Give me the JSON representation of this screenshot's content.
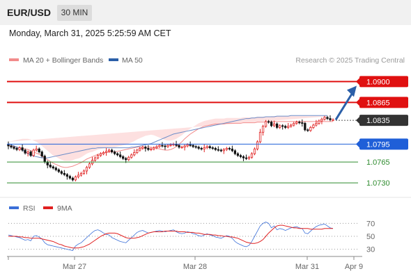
{
  "header": {
    "symbol": "EUR/USD",
    "timeframe": "30 MIN",
    "datetime": "Monday, March 31, 2025 5:25:59 AM CET"
  },
  "legend": {
    "ma20": "MA 20 + Bollinger Bands",
    "ma50": "MA 50",
    "copyright": "Research © 2025 Trading Central"
  },
  "rsi": {
    "legend_rsi": "RSI",
    "legend_ma": "9MA"
  },
  "colors": {
    "resistance": "#e01010",
    "pivot": "#1f5fd8",
    "support": "#2e8b2e",
    "current": "#333333",
    "candle_up": "#e02020",
    "candle_down": "#111111",
    "band_fill": "#fde0e0",
    "ma20": "#f28b8b",
    "ma50": "#6b8cc8",
    "rsi_line": "#3a6fd8",
    "rsi_ma": "#e02020",
    "arrow": "#2b5fa8"
  },
  "chart_data": [
    {
      "type": "candlestick",
      "title": "EUR/USD",
      "ylim": [
        1.0715,
        1.0925
      ],
      "x_ticks": [
        "Mar 27",
        "Mar 28",
        "Mar 31",
        "Apr 9"
      ],
      "levels": [
        {
          "value": 1.09,
          "label": "1.0900",
          "kind": "resistance"
        },
        {
          "value": 1.0865,
          "label": "1.0865",
          "kind": "resistance"
        },
        {
          "value": 1.0835,
          "label": "1.0835",
          "kind": "current"
        },
        {
          "value": 1.0795,
          "label": "1.0795",
          "kind": "pivot"
        },
        {
          "value": 1.0765,
          "label": "1.0765",
          "kind": "support"
        },
        {
          "value": 1.073,
          "label": "1.0730",
          "kind": "support"
        }
      ],
      "forecast_target": 1.09,
      "close_series": [
        1.0792,
        1.079,
        1.0788,
        1.0786,
        1.0789,
        1.0785,
        1.078,
        1.0782,
        1.0776,
        1.0785,
        1.0787,
        1.0782,
        1.0775,
        1.0765,
        1.076,
        1.0757,
        1.0755,
        1.0752,
        1.0749,
        1.0746,
        1.0744,
        1.0741,
        1.0738,
        1.0735,
        1.074,
        1.0743,
        1.0746,
        1.075,
        1.0756,
        1.0762,
        1.0768,
        1.0772,
        1.0776,
        1.0779,
        1.0781,
        1.0783,
        1.0785,
        1.0782,
        1.0779,
        1.0777,
        1.0774,
        1.0771,
        1.0769,
        1.0773,
        1.0777,
        1.0781,
        1.0785,
        1.0788,
        1.079,
        1.0788,
        1.0786,
        1.0787,
        1.0789,
        1.0791,
        1.0793,
        1.0792,
        1.0791,
        1.0793,
        1.0794,
        1.0795,
        1.0793,
        1.079,
        1.079,
        1.0792,
        1.0794,
        1.0793,
        1.0791,
        1.079,
        1.0788,
        1.0787,
        1.0789,
        1.0791,
        1.0789,
        1.0788,
        1.0786,
        1.0785,
        1.0784,
        1.0786,
        1.0788,
        1.0787,
        1.0784,
        1.0779,
        1.0776,
        1.0774,
        1.0772,
        1.0771,
        1.0773,
        1.0779,
        1.0787,
        1.0799,
        1.0815,
        1.0825,
        1.0833,
        1.0832,
        1.0826,
        1.0829,
        1.0823,
        1.0826,
        1.0825,
        1.0823,
        1.0825,
        1.0827,
        1.083,
        1.0832,
        1.0831,
        1.083,
        1.0819,
        1.0818,
        1.0823,
        1.0827,
        1.083,
        1.0834,
        1.0837,
        1.084,
        1.0838,
        1.0836,
        1.0836
      ],
      "ma20_series": [
        1.0793,
        1.0792,
        1.0791,
        1.079,
        1.0789,
        1.0788,
        1.0787,
        1.0786,
        1.0784,
        1.0782,
        1.078,
        1.0778,
        1.0775,
        1.0772,
        1.0769,
        1.0766,
        1.0763,
        1.0761,
        1.0759,
        1.0757,
        1.0756,
        1.0756,
        1.0757,
        1.0758,
        1.076,
        1.0762,
        1.0764,
        1.0767,
        1.077,
        1.0772,
        1.0774,
        1.0776,
        1.0778,
        1.0779,
        1.078,
        1.0781,
        1.0782,
        1.0782,
        1.0782,
        1.0783,
        1.0784,
        1.0785,
        1.0786,
        1.0787,
        1.0788,
        1.0789,
        1.079,
        1.079,
        1.079,
        1.079,
        1.079,
        1.079,
        1.0789,
        1.0788,
        1.0787,
        1.0786,
        1.0785,
        1.0785,
        1.0786,
        1.0788,
        1.0791,
        1.0795,
        1.0799,
        1.0804,
        1.0808,
        1.0812,
        1.0815,
        1.0818,
        1.0821,
        1.0823,
        1.0825,
        1.0826,
        1.0827,
        1.0828,
        1.0829,
        1.0829,
        1.0829,
        1.0829,
        1.083,
        1.083,
        1.083,
        1.083,
        1.083,
        1.083,
        1.0831,
        1.0831,
        1.0831,
        1.0831,
        1.0831,
        1.0832,
        1.0832,
        1.0832,
        1.0832,
        1.0832,
        1.0833,
        1.0833,
        1.0833,
        1.0833,
        1.0833,
        1.0833,
        1.0833,
        1.0833,
        1.0833,
        1.0833,
        1.0833,
        1.0833,
        1.0833,
        1.0833,
        1.0833,
        1.0833,
        1.0833,
        1.0833,
        1.0833,
        1.0833,
        1.0833,
        1.0833,
        1.0833
      ],
      "ma50_series": [
        1.0796,
        1.0794,
        1.0792,
        1.079,
        1.0788,
        1.0785,
        1.0782,
        1.0779,
        1.0777,
        1.0775,
        1.0774,
        1.0773,
        1.0772,
        1.0772,
        1.0772,
        1.0773,
        1.0774,
        1.0775,
        1.0776,
        1.0777,
        1.0778,
        1.0779,
        1.078,
        1.0781,
        1.0782,
        1.0783,
        1.0784,
        1.0785,
        1.0786,
        1.0787,
        1.0788,
        1.0788,
        1.0789,
        1.0789,
        1.0789,
        1.0789,
        1.0789,
        1.0789,
        1.0789,
        1.0789,
        1.0789,
        1.0789,
        1.0789,
        1.0789,
        1.079,
        1.079,
        1.0791,
        1.0792,
        1.0793,
        1.0794,
        1.0795,
        1.0796,
        1.0798,
        1.08,
        1.0802,
        1.0804,
        1.0806,
        1.0808,
        1.081,
        1.0812,
        1.0813,
        1.0814,
        1.0815,
        1.0816,
        1.0817,
        1.0818,
        1.0819,
        1.082,
        1.0821,
        1.0822,
        1.0823,
        1.0824,
        1.0825,
        1.0826,
        1.0827,
        1.0828,
        1.0829,
        1.083,
        1.0831,
        1.0832,
        1.0833,
        1.0834,
        1.0835,
        1.0836,
        1.0837,
        1.0838,
        1.0838,
        1.0839,
        1.0839,
        1.084,
        1.084,
        1.084,
        1.0841,
        1.0841,
        1.0841,
        1.0841,
        1.0842,
        1.0842,
        1.0842,
        1.0842,
        1.0842,
        1.0843,
        1.0843,
        1.0843,
        1.0843,
        1.0843,
        1.0843,
        1.0843,
        1.0843,
        1.0843,
        1.0843,
        1.0843,
        1.0843,
        1.0843,
        1.0843
      ],
      "band_half_width": [
        0.0006,
        0.0008,
        0.001,
        0.0012,
        0.0014,
        0.0016,
        0.0017,
        0.0018,
        0.0019,
        0.0019,
        0.0019,
        0.0018,
        0.0017,
        0.0016,
        0.0015,
        0.0014,
        0.0013,
        0.0013,
        0.0012,
        0.0012,
        0.0011,
        0.0011,
        0.001,
        0.001,
        0.001,
        0.0009,
        0.0009,
        0.0009,
        0.0009,
        0.0009,
        0.0008,
        0.0008,
        0.0008,
        0.0008,
        0.0008,
        0.0008,
        0.0008,
        0.0008,
        0.0008,
        0.0008,
        0.0008,
        0.0008,
        0.0008,
        0.0009,
        0.001,
        0.0011,
        0.0013,
        0.0015,
        0.0017,
        0.0019,
        0.002,
        0.0021,
        0.0021,
        0.002,
        0.0019,
        0.0018,
        0.0017,
        0.0016,
        0.0015,
        0.0014,
        0.0013,
        0.0012,
        0.0011,
        0.001,
        0.001,
        0.0009,
        0.0009,
        0.0009,
        0.0009,
        0.0009,
        0.0009,
        0.0009,
        0.0009,
        0.0009,
        0.0009,
        0.0009,
        0.0009,
        0.0009,
        0.0009,
        0.0009,
        0.0009,
        0.0009,
        0.0009,
        0.0009,
        0.0009,
        0.0009,
        0.0009,
        0.0009,
        0.0009,
        0.0009,
        0.0009,
        0.0009,
        0.0009,
        0.0009,
        0.0009,
        0.0009,
        0.0009,
        0.0009,
        0.0009,
        0.0009,
        0.0009,
        0.0009,
        0.0009,
        0.0009,
        0.0009,
        0.0009,
        0.0009,
        0.0009,
        0.0009,
        0.0009,
        0.0009,
        0.0009,
        0.0009,
        0.0009,
        0.0009,
        0.0009
      ]
    },
    {
      "type": "line",
      "title": "RSI",
      "ylim": [
        20,
        80
      ],
      "y_ticks": [
        70,
        50,
        30
      ],
      "series": [
        {
          "name": "RSI",
          "values": [
            52,
            51,
            50,
            49,
            48,
            46,
            44,
            45,
            43,
            50,
            51,
            49,
            46,
            40,
            37,
            36,
            35,
            34,
            33,
            32,
            31,
            30,
            29,
            28,
            35,
            38,
            40,
            44,
            48,
            52,
            56,
            59,
            60,
            58,
            55,
            53,
            52,
            48,
            46,
            44,
            42,
            41,
            40,
            44,
            48,
            52,
            56,
            58,
            59,
            57,
            55,
            56,
            57,
            58,
            59,
            58,
            57,
            58,
            59,
            60,
            57,
            55,
            54,
            55,
            57,
            56,
            54,
            53,
            51,
            50,
            52,
            54,
            52,
            51,
            49,
            48,
            47,
            49,
            51,
            50,
            47,
            42,
            39,
            37,
            35,
            34,
            36,
            42,
            50,
            58,
            66,
            70,
            72,
            70,
            63,
            66,
            60,
            62,
            61,
            59,
            61,
            63,
            64,
            65,
            63,
            62,
            55,
            54,
            58,
            62,
            65,
            67,
            68,
            69,
            66,
            63,
            62
          ]
        },
        {
          "name": "9MA",
          "values": [
            50,
            50,
            50,
            50,
            49,
            49,
            48,
            48,
            47,
            47,
            47,
            47,
            46,
            45,
            44,
            43,
            42,
            40,
            38,
            37,
            35,
            34,
            33,
            32,
            32,
            32,
            33,
            34,
            36,
            38,
            41,
            44,
            47,
            50,
            52,
            54,
            55,
            55,
            55,
            54,
            52,
            50,
            48,
            47,
            47,
            47,
            48,
            49,
            51,
            53,
            55,
            56,
            57,
            57,
            57,
            57,
            58,
            58,
            58,
            58,
            58,
            57,
            57,
            57,
            56,
            56,
            56,
            55,
            55,
            54,
            53,
            53,
            53,
            52,
            52,
            51,
            51,
            50,
            50,
            49,
            49,
            48,
            47,
            45,
            43,
            41,
            40,
            39,
            39,
            40,
            42,
            45,
            50,
            55,
            59,
            63,
            66,
            67,
            67,
            66,
            65,
            64,
            63,
            63,
            62,
            62,
            62,
            62,
            61,
            61,
            61,
            61,
            61,
            62,
            62,
            62,
            62
          ]
        }
      ]
    }
  ]
}
